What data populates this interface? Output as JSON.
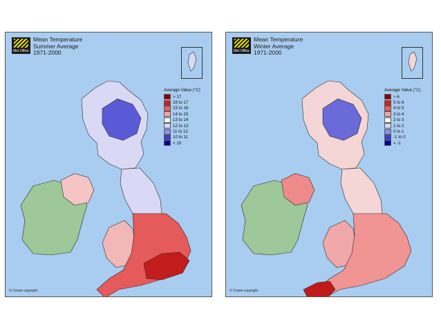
{
  "panels": [
    {
      "logo_text": "Met Office",
      "title": [
        "Mean Temperature",
        "Summer Average",
        "1971-2000"
      ],
      "legend_title": "Average Value (°C)",
      "legend": [
        {
          "label": "> 17",
          "color": "#8c0000"
        },
        {
          "label": "16 to 17",
          "color": "#d42020"
        },
        {
          "label": "15 to 16",
          "color": "#ee5f5f"
        },
        {
          "label": "14 to 15",
          "color": "#f5a3a3"
        },
        {
          "label": "13 to 14",
          "color": "#ffffff"
        },
        {
          "label": "12 to 13",
          "color": "#d6d6f6"
        },
        {
          "label": "11 to 12",
          "color": "#8f8ff0"
        },
        {
          "label": "10 to 11",
          "color": "#3c3cd4"
        },
        {
          "label": "< 10",
          "color": "#0000a0"
        }
      ],
      "copyright": "© Crown copyright"
    },
    {
      "logo_text": "Met Office",
      "title": [
        "Mean Temperature",
        "Winter Average",
        "1971-2000"
      ],
      "legend_title": "Average Value (°C)",
      "legend": [
        {
          "label": "> 6",
          "color": "#8c0000"
        },
        {
          "label": "5 to 6",
          "color": "#d42020"
        },
        {
          "label": "4 to 5",
          "color": "#ee5f5f"
        },
        {
          "label": "3 to 4",
          "color": "#f5a3a3"
        },
        {
          "label": "2 to 3",
          "color": "#ffffff"
        },
        {
          "label": "1 to 2",
          "color": "#d6d6f6"
        },
        {
          "label": "0 to 1",
          "color": "#8f8ff0"
        },
        {
          "label": "-1 to 0",
          "color": "#3c3cd4"
        },
        {
          "label": "< -1",
          "color": "#0000a0"
        }
      ],
      "copyright": "© Crown copyright"
    }
  ],
  "colors": {
    "sea": "#a9cdf0",
    "ireland": "#9ec79a",
    "summer": {
      "south": "#e55a5a",
      "hot": "#c31c1c",
      "wales": "#f2b8b8",
      "north": "#d9d9f5",
      "highlands": "#5a5ad8",
      "ni": "#f5c5c5"
    },
    "winter": {
      "south": "#f19494",
      "hot": "#c01a1a",
      "wales": "#f0a8a8",
      "north": "#f4d6d6",
      "highlands": "#6a6ad8",
      "ni": "#ee8a8a"
    }
  }
}
